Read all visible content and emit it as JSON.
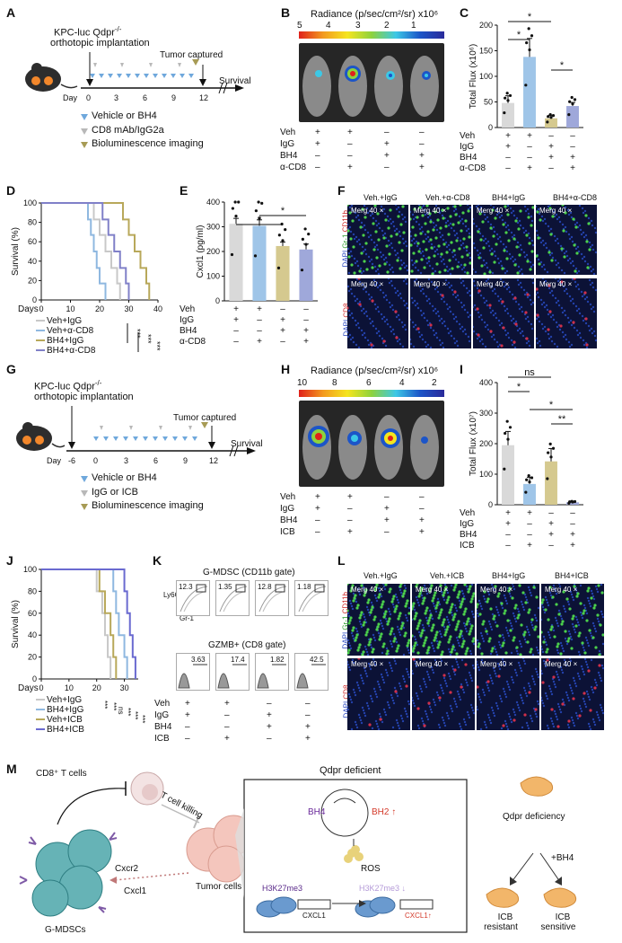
{
  "panel_letters": [
    "A",
    "B",
    "C",
    "D",
    "E",
    "F",
    "G",
    "H",
    "I",
    "J",
    "K",
    "L",
    "M"
  ],
  "panelA": {
    "model": "KPC-luc Qdpr",
    "model_sup": "-/-",
    "procedure": "orthotopic implantation",
    "tumor_captured": "Tumor captured",
    "survival": "Survival",
    "day_label": "Day",
    "days": [
      "0",
      "3",
      "6",
      "9",
      "12"
    ],
    "legend": [
      "Vehicle or BH4",
      "CD8 mAb/IgG2a",
      "Bioluminescence imaging"
    ],
    "colors": {
      "blue": "#6fa8dc",
      "gray": "#b8b8b8",
      "olive": "#a79b55"
    }
  },
  "panelB": {
    "scale_title": "Radiance (p/sec/cm²/sr)",
    "scale_exp": "x10⁶",
    "scale_ticks": [
      "5",
      "4",
      "3",
      "2",
      "1"
    ],
    "rows": [
      "Veh",
      "IgG",
      "BH4",
      "α-CD8"
    ],
    "matrix": [
      [
        "+",
        "+",
        "–",
        "–"
      ],
      [
        "+",
        "–",
        "+",
        "–"
      ],
      [
        "–",
        "–",
        "+",
        "+"
      ],
      [
        "–",
        "+",
        "–",
        "+"
      ]
    ]
  },
  "panelC": {
    "chart_data": {
      "type": "bar",
      "ylabel": "Total Flux (x10⁶)",
      "yticks": [
        "0",
        "50",
        "100",
        "150",
        "200"
      ],
      "ylim": [
        0,
        200
      ],
      "categories": [
        "Veh+IgG",
        "Veh+α-CD8",
        "BH4+IgG",
        "BH4+α-CD8"
      ],
      "values": [
        48,
        138,
        18,
        42
      ],
      "errors": [
        14,
        36,
        6,
        7
      ],
      "colors": [
        "#d9d9d9",
        "#9fc5e8",
        "#d5c98f",
        "#9fa8da"
      ],
      "rows": [
        "Veh",
        "IgG",
        "BH4",
        "α-CD8"
      ],
      "matrix": [
        [
          "+",
          "+",
          "–",
          "–"
        ],
        [
          "+",
          "–",
          "+",
          "–"
        ],
        [
          "–",
          "–",
          "+",
          "+"
        ],
        [
          "–",
          "+",
          "–",
          "+"
        ]
      ],
      "sig": [
        "*",
        "*",
        "*"
      ]
    }
  },
  "panelD": {
    "chart_data": {
      "type": "line",
      "ylabel": "Survival (%)",
      "xlabel": "Days",
      "xticks": [
        "0",
        "10",
        "20",
        "30",
        "40"
      ],
      "yticks": [
        "0",
        "20",
        "40",
        "60",
        "80",
        "100"
      ],
      "xlim": [
        0,
        40
      ],
      "ylim": [
        0,
        100
      ],
      "series": [
        {
          "name": "Veh+IgG",
          "color": "#c8c8c8",
          "x": [
            0,
            16,
            18,
            20,
            22,
            24,
            26,
            27
          ],
          "y": [
            100,
            100,
            83,
            67,
            50,
            33,
            17,
            0
          ]
        },
        {
          "name": "Veh+α-CD8",
          "color": "#8fb8e0",
          "x": [
            0,
            13,
            16,
            17,
            18,
            19,
            20,
            22
          ],
          "y": [
            100,
            100,
            83,
            67,
            50,
            33,
            17,
            0
          ]
        },
        {
          "name": "BH4+IgG",
          "color": "#b8a85a",
          "x": [
            0,
            25,
            28,
            30,
            32,
            34,
            36,
            37
          ],
          "y": [
            100,
            100,
            83,
            67,
            50,
            33,
            17,
            0
          ]
        },
        {
          "name": "BH4+α-CD8",
          "color": "#8080c8",
          "x": [
            0,
            18,
            21,
            23,
            25,
            27,
            29,
            30
          ],
          "y": [
            100,
            100,
            83,
            67,
            50,
            33,
            17,
            0
          ]
        }
      ],
      "sig": [
        "***",
        "***",
        "***"
      ]
    }
  },
  "panelE": {
    "chart_data": {
      "type": "bar",
      "ylabel": "Cxcl1 (pg/ml)",
      "yticks": [
        "0",
        "100",
        "200",
        "300",
        "400"
      ],
      "ylim": [
        0,
        400
      ],
      "categories": [
        "Veh+IgG",
        "Veh+α-CD8",
        "BH4+IgG",
        "BH4+α-CD8"
      ],
      "values": [
        312,
        304,
        222,
        208
      ],
      "errors": [
        22,
        24,
        16,
        22
      ],
      "colors": [
        "#d9d9d9",
        "#9fc5e8",
        "#d5c98f",
        "#9fa8da"
      ],
      "rows": [
        "Veh",
        "IgG",
        "BH4",
        "α-CD8"
      ],
      "matrix": [
        [
          "+",
          "+",
          "–",
          "–"
        ],
        [
          "+",
          "–",
          "+",
          "–"
        ],
        [
          "–",
          "–",
          "+",
          "+"
        ],
        [
          "–",
          "+",
          "–",
          "+"
        ]
      ],
      "sig": [
        "*",
        "*"
      ]
    }
  },
  "panelF": {
    "headers": [
      "Veh.+IgG",
      "Veh.+α-CD8",
      "BH4+IgG",
      "BH4+α-CD8"
    ],
    "tile_label": "Merg 40 ×",
    "row1_label": [
      "DAPI ",
      "Gr-1 ",
      "CD11b"
    ],
    "row2_label": [
      "DAPI ",
      "CD8"
    ]
  },
  "panelG": {
    "model": "KPC-luc Qdpr",
    "model_sup": "-/-",
    "procedure": "orthotopic implantation",
    "tumor_captured": "Tumor captured",
    "survival": "Survival",
    "day_label": "Day",
    "days": [
      "-6",
      "0",
      "3",
      "6",
      "9",
      "12"
    ],
    "legend": [
      "Vehicle or BH4",
      "IgG or ICB",
      "Bioluminescence imaging"
    ]
  },
  "panelH": {
    "scale_title": "Radiance (p/sec/cm²/sr)",
    "scale_exp": "x10⁶",
    "scale_ticks": [
      "10",
      "8",
      "6",
      "4",
      "2"
    ],
    "rows": [
      "Veh",
      "IgG",
      "BH4",
      "ICB"
    ],
    "matrix": [
      [
        "+",
        "+",
        "–",
        "–"
      ],
      [
        "+",
        "–",
        "+",
        "–"
      ],
      [
        "–",
        "–",
        "+",
        "+"
      ],
      [
        "–",
        "+",
        "–",
        "+"
      ]
    ]
  },
  "panelI": {
    "chart_data": {
      "type": "bar",
      "ylabel": "Total Flux (x10⁷)",
      "yticks": [
        "0",
        "100",
        "200",
        "300",
        "400"
      ],
      "ylim": [
        0,
        400
      ],
      "categories": [
        "Veh+IgG",
        "Veh+ICB",
        "BH4+IgG",
        "BH4+ICB"
      ],
      "values": [
        195,
        68,
        142,
        8
      ],
      "errors": [
        45,
        22,
        42,
        3
      ],
      "colors": [
        "#d9d9d9",
        "#9fc5e8",
        "#d5c98f",
        "#9fa8da"
      ],
      "rows": [
        "Veh",
        "IgG",
        "BH4",
        "ICB"
      ],
      "matrix": [
        [
          "+",
          "+",
          "–",
          "–"
        ],
        [
          "+",
          "–",
          "+",
          "–"
        ],
        [
          "–",
          "–",
          "+",
          "+"
        ],
        [
          "–",
          "+",
          "–",
          "+"
        ]
      ],
      "sig": [
        "ns",
        "*",
        "*",
        "**"
      ]
    }
  },
  "panelJ": {
    "chart_data": {
      "type": "line",
      "ylabel": "Survival (%)",
      "xlabel": "Days",
      "xticks": [
        "0",
        "10",
        "20",
        "30"
      ],
      "yticks": [
        "0",
        "20",
        "40",
        "60",
        "80",
        "100"
      ],
      "xlim": [
        0,
        35
      ],
      "ylim": [
        0,
        100
      ],
      "series": [
        {
          "name": "Veh+IgG",
          "color": "#c8c8c8",
          "x": [
            0,
            18,
            20,
            22,
            23,
            24,
            25
          ],
          "y": [
            100,
            100,
            80,
            60,
            40,
            20,
            0
          ]
        },
        {
          "name": "BH4+IgG",
          "color": "#8fb8e0",
          "x": [
            0,
            24,
            26,
            27,
            28,
            30,
            31
          ],
          "y": [
            100,
            100,
            80,
            60,
            40,
            20,
            0
          ]
        },
        {
          "name": "Veh+ICB",
          "color": "#b8a85a",
          "x": [
            0,
            17,
            21,
            23,
            25,
            26,
            27
          ],
          "y": [
            100,
            100,
            80,
            60,
            40,
            20,
            0
          ]
        },
        {
          "name": "BH4+ICB",
          "color": "#6a6ad0",
          "x": [
            0,
            28,
            30,
            31,
            32,
            33,
            34
          ],
          "y": [
            100,
            100,
            80,
            60,
            40,
            20,
            0
          ]
        }
      ],
      "sig": [
        "***",
        "***",
        "ns",
        "***",
        "***",
        "***"
      ]
    }
  },
  "panelK": {
    "title1": "G-MDSC (CD11b gate)",
    "title2": "GZMB+ (CD8 gate)",
    "axis_y": "Ly6G",
    "axis_x": "Gr-1",
    "values1": [
      "12.3",
      "1.35",
      "12.8",
      "1.18"
    ],
    "values2": [
      "3.63",
      "17.4",
      "1.82",
      "42.5"
    ],
    "rows": [
      "Veh",
      "IgG",
      "BH4",
      "ICB"
    ],
    "matrix": [
      [
        "+",
        "+",
        "–",
        "–"
      ],
      [
        "+",
        "–",
        "+",
        "–"
      ],
      [
        "–",
        "–",
        "+",
        "+"
      ],
      [
        "–",
        "+",
        "–",
        "+"
      ]
    ]
  },
  "panelL": {
    "headers": [
      "Veh.+IgG",
      "Veh.+ICB",
      "BH4+IgG",
      "BH4+ICB"
    ],
    "tile_label": "Merg 40 ×",
    "row1_label": [
      "DAPI ",
      "Gr-1 ",
      "CD11b"
    ],
    "row2_label": [
      "DAPI ",
      "CD8"
    ]
  },
  "panelM": {
    "cd8": "CD8⁺ T cells",
    "tkill": "T cell killing",
    "tumor": "Tumor cells",
    "mdsc": "G-MDSCs",
    "cxcr2": "Cxcr2",
    "cxcl1": "Cxcl1",
    "box_title": "Qdpr deficient",
    "bh4": "BH4",
    "bh2": "BH2",
    "ros": "ROS",
    "h3k": "H3K27me3",
    "gene": "CXCL1",
    "right_title": "Qdpr deficiency",
    "plus_bh4": "+BH4",
    "icb_res1": "ICB",
    "icb_res2": "resistant",
    "icb_sen1": "ICB",
    "icb_sen2": "sensitive"
  }
}
